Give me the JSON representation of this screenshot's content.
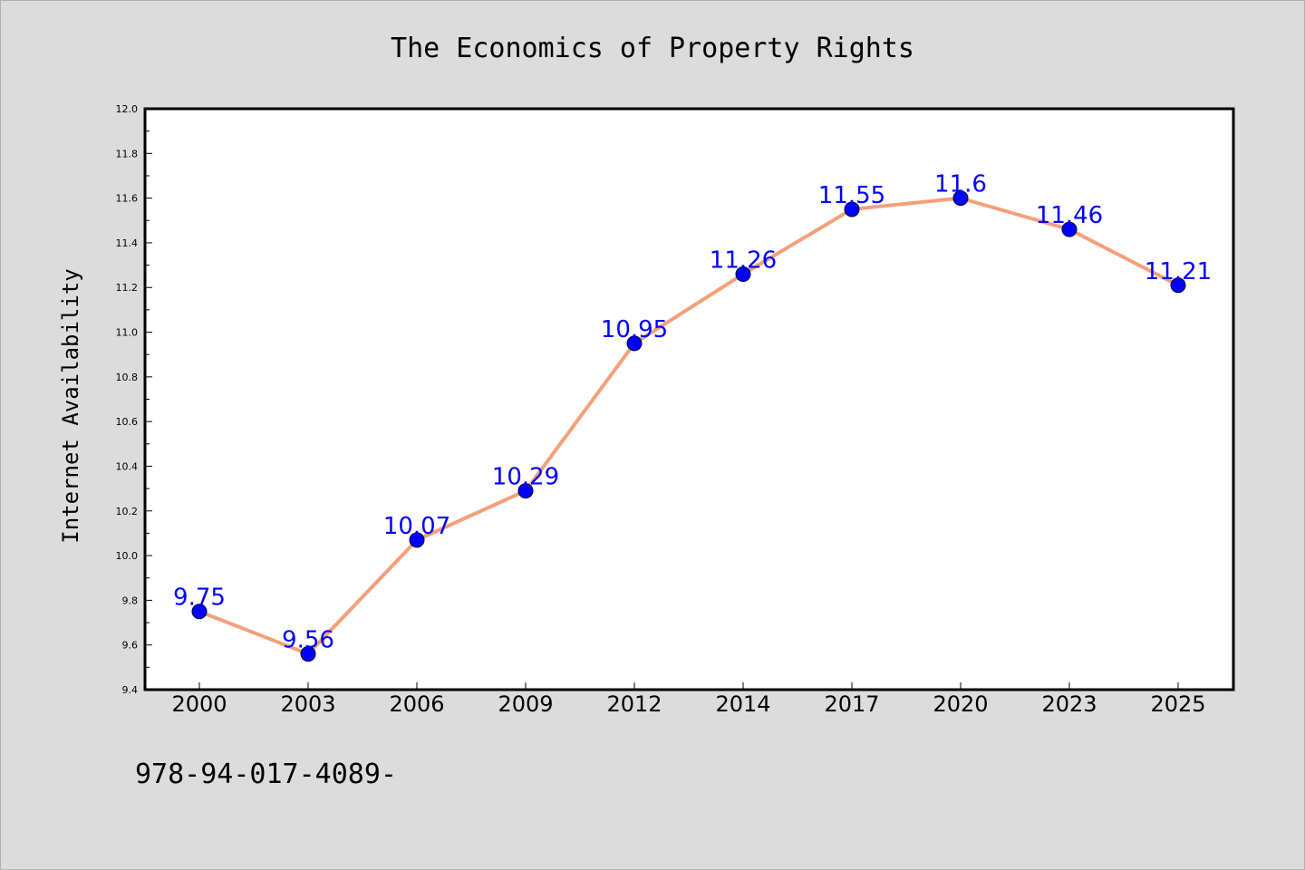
{
  "colors": {
    "background": "#dcdcdc",
    "plot_background": "#ffffff",
    "line": "#f4a07a",
    "marker": "#0000ff",
    "data_label": "#0000ff"
  },
  "chart_data": {
    "type": "line",
    "title": "The Economics of Property Rights",
    "xlabel": "",
    "ylabel": "Internet Availability",
    "categories": [
      "2000",
      "2003",
      "2006",
      "2009",
      "2012",
      "2014",
      "2017",
      "2020",
      "2023",
      "2025"
    ],
    "values": [
      9.75,
      9.56,
      10.07,
      10.29,
      10.95,
      11.26,
      11.55,
      11.6,
      11.46,
      11.21
    ],
    "data_labels": [
      "9.75",
      "9.56",
      "10.07",
      "10.29",
      "10.95",
      "11.26",
      "11.55",
      "11.6",
      "11.46",
      "11.21"
    ],
    "ylim": [
      9.4,
      12.0
    ],
    "yticks": [
      "9.4",
      "9.6",
      "9.8",
      "10.0",
      "10.2",
      "10.4",
      "10.6",
      "10.8",
      "11.0",
      "11.2",
      "11.4",
      "11.6",
      "11.8",
      "12.0"
    ],
    "grid": false,
    "legend": "none"
  },
  "footer": {
    "isbn": "978-94-017-4089-"
  }
}
